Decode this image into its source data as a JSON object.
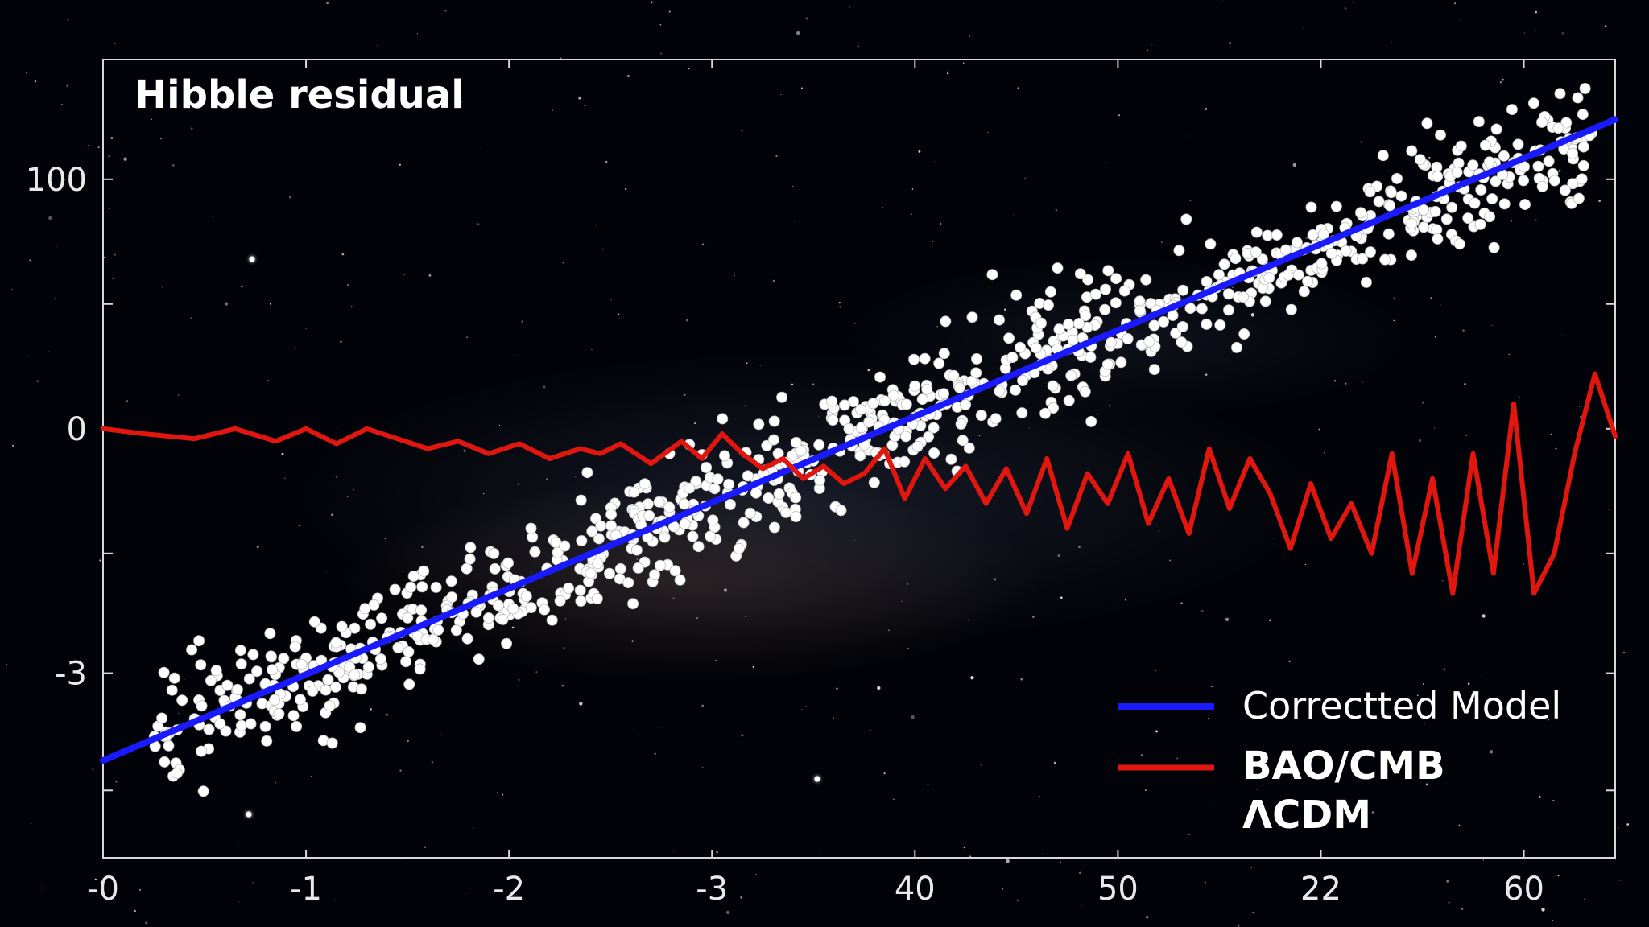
{
  "chart_data": {
    "type": "scatter",
    "title": "Hibble residual",
    "xlabel": "",
    "ylabel": "",
    "x_tick_labels": [
      "-0",
      "-1",
      "-2",
      "-3",
      "40",
      "50",
      "22",
      "60"
    ],
    "y_tick_labels": [
      "100",
      "0",
      "-3"
    ],
    "xlim": [
      0,
      7.45
    ],
    "ylim": [
      -1.72,
      1.48
    ],
    "grid": false,
    "legend_position": "bottom-right",
    "legend": [
      {
        "label": "Correctted Model",
        "color": "#1a1aff"
      },
      {
        "label": "BAO/CMB",
        "color": "#e0160f"
      },
      {
        "label": "ΛCDM",
        "color": ""
      }
    ],
    "series": [
      {
        "name": "Correctted Model",
        "kind": "line",
        "color": "#1a1aff",
        "x": [
          0,
          7.45
        ],
        "y": [
          -1.33,
          1.24
        ]
      },
      {
        "name": "BAO/CMB",
        "kind": "line",
        "color": "#e0160f",
        "x": [
          0,
          0.2,
          0.45,
          0.65,
          0.85,
          1.0,
          1.15,
          1.3,
          1.45,
          1.6,
          1.75,
          1.9,
          2.05,
          2.2,
          2.35,
          2.45,
          2.55,
          2.7,
          2.85,
          2.95,
          3.05,
          3.15,
          3.25,
          3.35,
          3.45,
          3.55,
          3.65,
          3.75,
          3.85,
          3.95,
          4.05,
          4.15,
          4.25,
          4.35,
          4.45,
          4.55,
          4.65,
          4.75,
          4.85,
          4.95,
          5.05,
          5.15,
          5.25,
          5.35,
          5.45,
          5.55,
          5.65,
          5.75,
          5.85,
          5.95,
          6.05,
          6.15,
          6.25,
          6.35,
          6.45,
          6.55,
          6.65,
          6.75,
          6.85,
          6.95,
          7.05,
          7.15,
          7.25,
          7.35,
          7.45
        ],
        "y": [
          0.0,
          -0.02,
          -0.04,
          0.0,
          -0.05,
          0.0,
          -0.06,
          0.0,
          -0.04,
          -0.08,
          -0.05,
          -0.1,
          -0.06,
          -0.12,
          -0.08,
          -0.1,
          -0.06,
          -0.14,
          -0.05,
          -0.12,
          -0.02,
          -0.1,
          -0.16,
          -0.12,
          -0.2,
          -0.15,
          -0.22,
          -0.18,
          -0.08,
          -0.28,
          -0.12,
          -0.24,
          -0.15,
          -0.3,
          -0.16,
          -0.34,
          -0.12,
          -0.4,
          -0.18,
          -0.3,
          -0.1,
          -0.38,
          -0.2,
          -0.42,
          -0.08,
          -0.32,
          -0.12,
          -0.26,
          -0.48,
          -0.22,
          -0.44,
          -0.3,
          -0.5,
          -0.1,
          -0.58,
          -0.2,
          -0.66,
          -0.1,
          -0.58,
          0.1,
          -0.66,
          -0.5,
          -0.1,
          0.22,
          -0.03
        ],
        "points_note": ""
      },
      {
        "name": "",
        "kind": "scatter",
        "color": "#ffffff",
        "count": 900,
        "x_range": [
          0.25,
          7.35
        ],
        "trend_start": [
          0.0,
          -1.33
        ],
        "trend_end": [
          7.45,
          1.24
        ],
        "spread": 0.11
      }
    ]
  }
}
